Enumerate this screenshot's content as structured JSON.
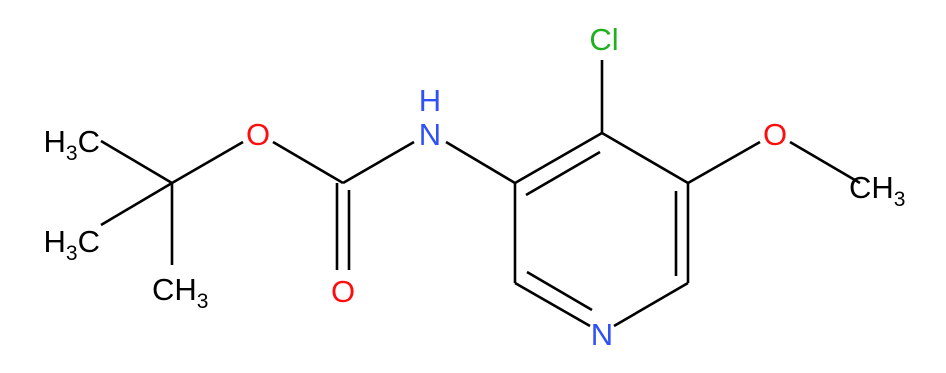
{
  "atoms": {
    "o_ester": "O",
    "o_carbonyl": "O",
    "n_amine": "N",
    "h_amine": "H",
    "cl": "Cl",
    "o_methoxy": "O",
    "n_ring": "N"
  },
  "methyls": [
    [
      "H",
      "3",
      "C"
    ],
    [
      "H",
      "3",
      "C"
    ],
    [
      "CH",
      "3"
    ],
    [
      "CH",
      "3"
    ]
  ]
}
